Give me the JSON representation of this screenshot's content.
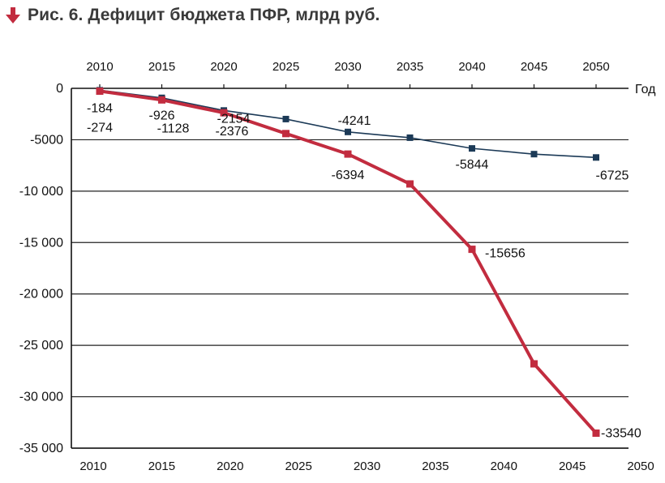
{
  "figure": {
    "title": "Рис. 6. Дефицит бюджета ПФР, млрд руб."
  },
  "chart_data": {
    "type": "line",
    "title": "Рис. 6. Дефицит бюджета ПФР, млрд руб.",
    "xlabel": "Год",
    "ylabel": "",
    "xlim": [
      2010,
      2050
    ],
    "ylim": [
      -35000,
      0
    ],
    "grid": true,
    "y_ticks": [
      0,
      -5000,
      -10000,
      -15000,
      -20000,
      -25000,
      -30000,
      -35000
    ],
    "y_tick_labels": [
      "0",
      "-5000",
      "-10 000",
      "-15 000",
      "-20 000",
      "-25 000",
      "-30 000",
      "-35 000"
    ],
    "top_axis": {
      "ticks": [
        2010,
        2015,
        2020,
        2025,
        2030,
        2035,
        2040,
        2045,
        2050
      ],
      "labels": [
        "2010",
        "2015",
        "2020",
        "2025",
        "2030",
        "2035",
        "2040",
        "2045",
        "2050"
      ]
    },
    "bottom_axis": {
      "ticks": [
        2010,
        2015,
        2020,
        2025,
        2030,
        2035,
        2040,
        2045,
        2050
      ],
      "labels": [
        "2010",
        "2015",
        "2020",
        "2025",
        "2030",
        "2035",
        "2040",
        "2045",
        "2050"
      ]
    },
    "series": [
      {
        "color": "#1c3a57",
        "x": [
          2010,
          2015,
          2020,
          2025,
          2030,
          2035,
          2040,
          2045,
          2050
        ],
        "values": [
          -184,
          -926,
          -2154,
          -2990,
          -4241,
          -4800,
          -5844,
          -6400,
          -6725
        ],
        "point_labels": [
          "-184",
          "-926",
          "-2154",
          "",
          "-4241",
          "",
          "-5844",
          "",
          "-6725"
        ]
      },
      {
        "color": "#c22c3f",
        "x": [
          2010,
          2015,
          2020,
          2025,
          2030,
          2035,
          2040,
          2045,
          2050
        ],
        "values": [
          -274,
          -1128,
          -2376,
          -4400,
          -6394,
          -9300,
          -15656,
          -26800,
          -33540
        ],
        "point_labels": [
          "-274",
          "-1128",
          "-2376",
          "",
          "-6394",
          "",
          "-15656",
          "",
          "-33540"
        ]
      }
    ]
  }
}
